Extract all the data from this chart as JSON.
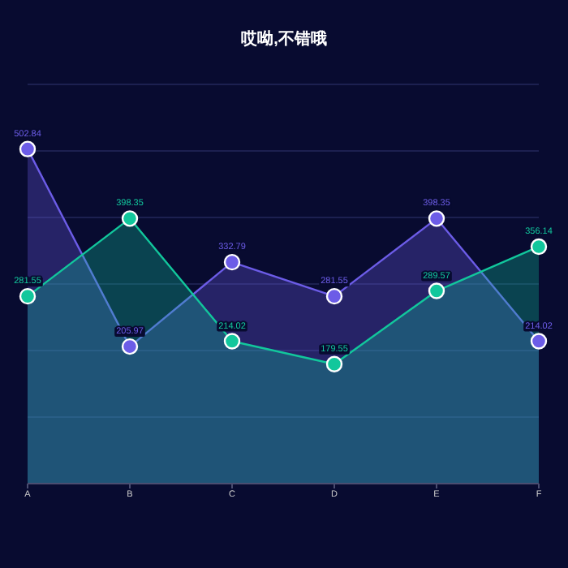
{
  "chart_data": {
    "type": "area",
    "title": "哎呦,不错哦",
    "categories": [
      "A",
      "B",
      "C",
      "D",
      "E",
      "F"
    ],
    "series": [
      {
        "name": null,
        "color": "#6c5ce7",
        "values": [
          502.84,
          205.97,
          332.79,
          281.55,
          398.35,
          214.02
        ]
      },
      {
        "name": null,
        "color": "#12c79c",
        "values": [
          281.55,
          398.35,
          214.02,
          179.55,
          289.57,
          356.14
        ]
      }
    ],
    "ylim": [
      0,
      600
    ],
    "yticks": [
      {
        "value": 0,
        "label": null
      },
      {
        "value": 100,
        "label": null
      },
      {
        "value": 200,
        "label": null
      },
      {
        "value": 300,
        "label": null
      },
      {
        "value": 400,
        "label": null
      },
      {
        "value": 500,
        "label": null
      },
      {
        "value": 600,
        "label": null
      }
    ],
    "tick_labels": "x",
    "grid": "y",
    "marker": "circle",
    "line_style": "solid",
    "data_labels": true
  }
}
